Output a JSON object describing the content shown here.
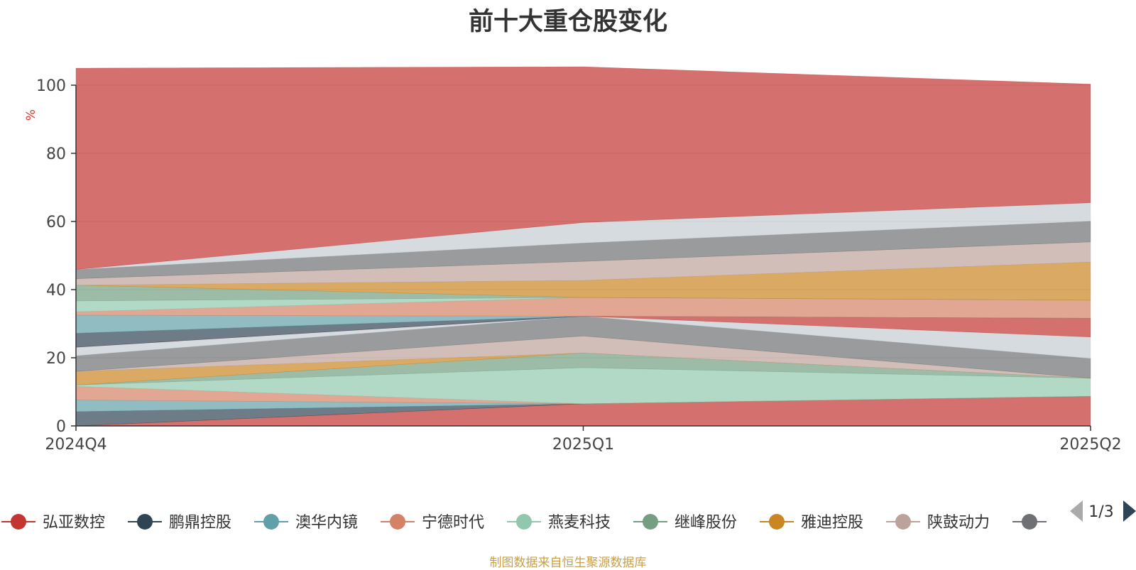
{
  "title": "前十大重仓股变化",
  "source": "制图数据来自恒生聚源数据库",
  "chart_data": {
    "type": "area",
    "stacked": true,
    "x": [
      "2024Q4",
      "2025Q1",
      "2025Q2"
    ],
    "ylabel": "%",
    "ylim": [
      0,
      100
    ],
    "yticks": [
      0,
      20,
      40,
      60,
      80,
      100
    ],
    "grid": true,
    "series": [
      {
        "values": [
          0.0,
          6.5,
          8.7
        ],
        "color": "#c23531"
      },
      {
        "values": [
          4.2,
          0.0,
          0.0
        ],
        "color": "#2f4554"
      },
      {
        "values": [
          3.4,
          0.0,
          0.0
        ],
        "color": "#61a0a8"
      },
      {
        "values": [
          4.0,
          0.0,
          0.0
        ],
        "color": "#d48265"
      },
      {
        "values": [
          0.4,
          10.6,
          5.3
        ],
        "color": "#91c7ae"
      },
      {
        "values": [
          0.0,
          4.3,
          0.0
        ],
        "color": "#749f83"
      },
      {
        "values": [
          4.0,
          0.0,
          0.0
        ],
        "color": "#ca8622"
      },
      {
        "values": [
          0.0,
          5.0,
          0.0
        ],
        "color": "#bda29a"
      },
      {
        "values": [
          4.6,
          5.8,
          5.8
        ],
        "color": "#6e7074"
      },
      {
        "values": [
          2.5,
          0.0,
          6.3
        ],
        "color": "#c4ccd3"
      },
      {
        "values": [
          0.0,
          0.0,
          5.5
        ],
        "color": "#c23531"
      },
      {
        "values": [
          4.1,
          0.0,
          0.0
        ],
        "color": "#2f4554"
      },
      {
        "values": [
          5.3,
          0.0,
          0.0
        ],
        "color": "#61a0a8"
      },
      {
        "values": [
          1.0,
          5.5,
          5.3
        ],
        "color": "#d48265"
      },
      {
        "values": [
          3.2,
          0.0,
          0.0
        ],
        "color": "#91c7ae"
      },
      {
        "values": [
          4.6,
          0.0,
          0.0
        ],
        "color": "#749f83"
      },
      {
        "values": [
          0.0,
          5.0,
          11.2
        ],
        "color": "#ca8622"
      },
      {
        "values": [
          1.9,
          5.6,
          5.9
        ],
        "color": "#bda29a"
      },
      {
        "values": [
          2.7,
          5.4,
          6.1
        ],
        "color": "#6e7074"
      },
      {
        "values": [
          0.0,
          6.0,
          5.4
        ],
        "color": "#c4ccd3"
      },
      {
        "values": [
          59.1,
          45.7,
          34.8
        ],
        "color": "#c23531"
      }
    ],
    "legend": {
      "placement": "bottom",
      "page": "1/3",
      "items": [
        {
          "name": "弘亚数控",
          "color": "#c23531"
        },
        {
          "name": "鹏鼎控股",
          "color": "#2f4554"
        },
        {
          "name": "澳华内镜",
          "color": "#61a0a8"
        },
        {
          "name": "宁德时代",
          "color": "#d48265"
        },
        {
          "name": "燕麦科技",
          "color": "#91c7ae"
        },
        {
          "name": "继峰股份",
          "color": "#749f83"
        },
        {
          "name": "雅迪控股",
          "color": "#ca8622"
        },
        {
          "name": "陕鼓动力",
          "color": "#bda29a"
        },
        {
          "name": "",
          "color": "#6e7074"
        }
      ]
    }
  }
}
